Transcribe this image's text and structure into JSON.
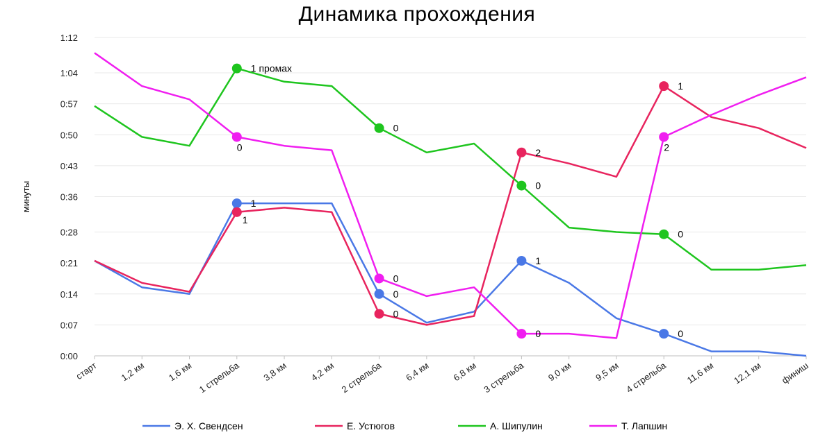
{
  "chart_data": {
    "type": "line",
    "title": "Динамика прохождения",
    "xlabel": "",
    "ylabel": "минуты",
    "ylim": [
      0,
      72
    ],
    "grid": true,
    "legend_position": "bottom",
    "y_ticks": [
      {
        "value": 0,
        "label": "0:00"
      },
      {
        "value": 7,
        "label": "0:07"
      },
      {
        "value": 14,
        "label": "0:14"
      },
      {
        "value": 21,
        "label": "0:21"
      },
      {
        "value": 28,
        "label": "0:28"
      },
      {
        "value": 36,
        "label": "0:36"
      },
      {
        "value": 43,
        "label": "0:43"
      },
      {
        "value": 50,
        "label": "0:50"
      },
      {
        "value": 57,
        "label": "0:57"
      },
      {
        "value": 64,
        "label": "1:04"
      },
      {
        "value": 72,
        "label": "1:12"
      }
    ],
    "categories": [
      "старт",
      "1,2 км",
      "1,6 км",
      "1 стрельба",
      "3,8 км",
      "4,2 км",
      "2 стрельба",
      "6,4 км",
      "6,8 км",
      "3 стрельба",
      "9,0 км",
      "9,5 км",
      "4 стрельба",
      "11,6 км",
      "12,1 км",
      "финиш"
    ],
    "series": [
      {
        "name": "Э. Х. Свендсен",
        "color": "#4a78e6",
        "values": [
          21.5,
          15.5,
          14,
          34.5,
          34.5,
          34.5,
          14,
          7.5,
          10,
          21.5,
          16.5,
          8.5,
          5,
          1,
          1,
          0
        ],
        "markers": [
          {
            "index": 3,
            "label": "1"
          },
          {
            "index": 6,
            "label": "0"
          },
          {
            "index": 9,
            "label": "1"
          },
          {
            "index": 12,
            "label": "0"
          }
        ]
      },
      {
        "name": "Е. Устюгов",
        "color": "#e8245e",
        "values": [
          21.5,
          16.5,
          14.5,
          32.5,
          33.5,
          32.5,
          9.5,
          7,
          9,
          46,
          43.5,
          40.5,
          61,
          54,
          51.5,
          47
        ],
        "markers": [
          {
            "index": 3,
            "label": "1"
          },
          {
            "index": 6,
            "label": "0"
          },
          {
            "index": 9,
            "label": "2"
          },
          {
            "index": 12,
            "label": "1"
          }
        ]
      },
      {
        "name": "А. Шипулин",
        "color": "#1ec51e",
        "values": [
          56.5,
          49.5,
          47.5,
          65,
          62,
          61,
          51.5,
          46,
          48,
          38.5,
          29,
          28,
          27.5,
          19.5,
          19.5,
          20.5
        ],
        "markers": [
          {
            "index": 3,
            "label": "1 промах"
          },
          {
            "index": 6,
            "label": "0"
          },
          {
            "index": 9,
            "label": "0"
          },
          {
            "index": 12,
            "label": "0"
          }
        ]
      },
      {
        "name": "Т. Лапшин",
        "color": "#f01ef0",
        "values": [
          68.5,
          61,
          58,
          49.5,
          47.5,
          46.5,
          17.5,
          13.5,
          15.5,
          5,
          5,
          4,
          49.5,
          54.5,
          59,
          63
        ],
        "markers": [
          {
            "index": 3,
            "label": "0"
          },
          {
            "index": 6,
            "label": "0"
          },
          {
            "index": 9,
            "label": "0"
          },
          {
            "index": 12,
            "label": "2"
          }
        ]
      }
    ]
  }
}
